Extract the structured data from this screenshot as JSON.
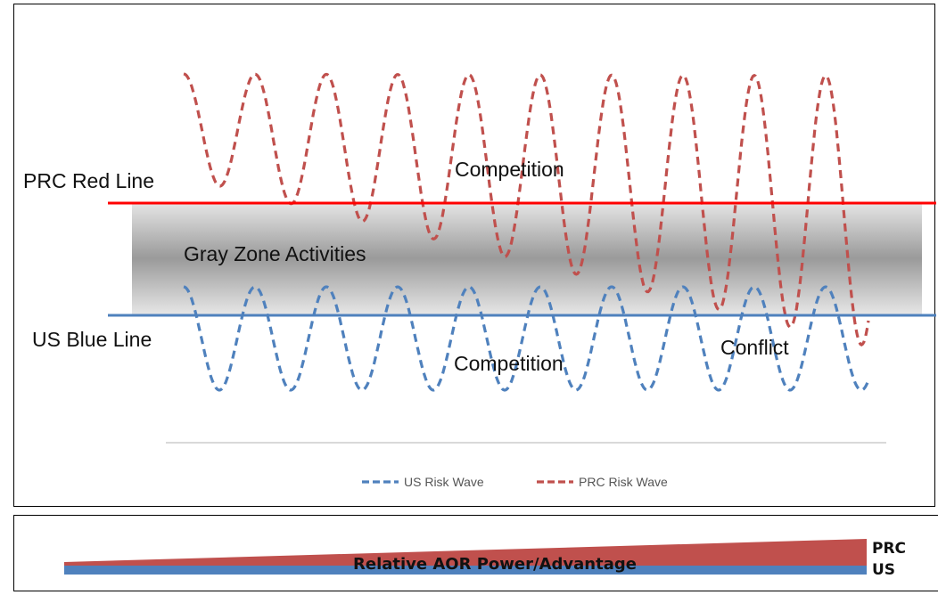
{
  "diagram": {
    "red_line_label": "PRC Red Line",
    "blue_line_label": "US Blue Line",
    "gray_zone_label": "Gray Zone Activities",
    "competition_upper_label": "Competition",
    "competition_lower_label": "Competition",
    "conflict_label": "Conflict",
    "colors": {
      "red_line": "#ff0000",
      "blue_line": "#4f81bd",
      "prc_wave": "#c0504d",
      "us_wave": "#4f81bd",
      "gray_zone_edge": "#e6e6e6",
      "gray_zone_center": "#9a9a9a"
    }
  },
  "legend": {
    "items": [
      {
        "label": "US Risk Wave",
        "color": "#4f81bd"
      },
      {
        "label": "PRC Risk Wave",
        "color": "#c0504d"
      }
    ]
  },
  "power_bar": {
    "label": "Relative AOR Power/Advantage",
    "top_label": "PRC",
    "bottom_label": "US",
    "colors": {
      "prc": "#c0504d",
      "us": "#4f81bd"
    }
  }
}
